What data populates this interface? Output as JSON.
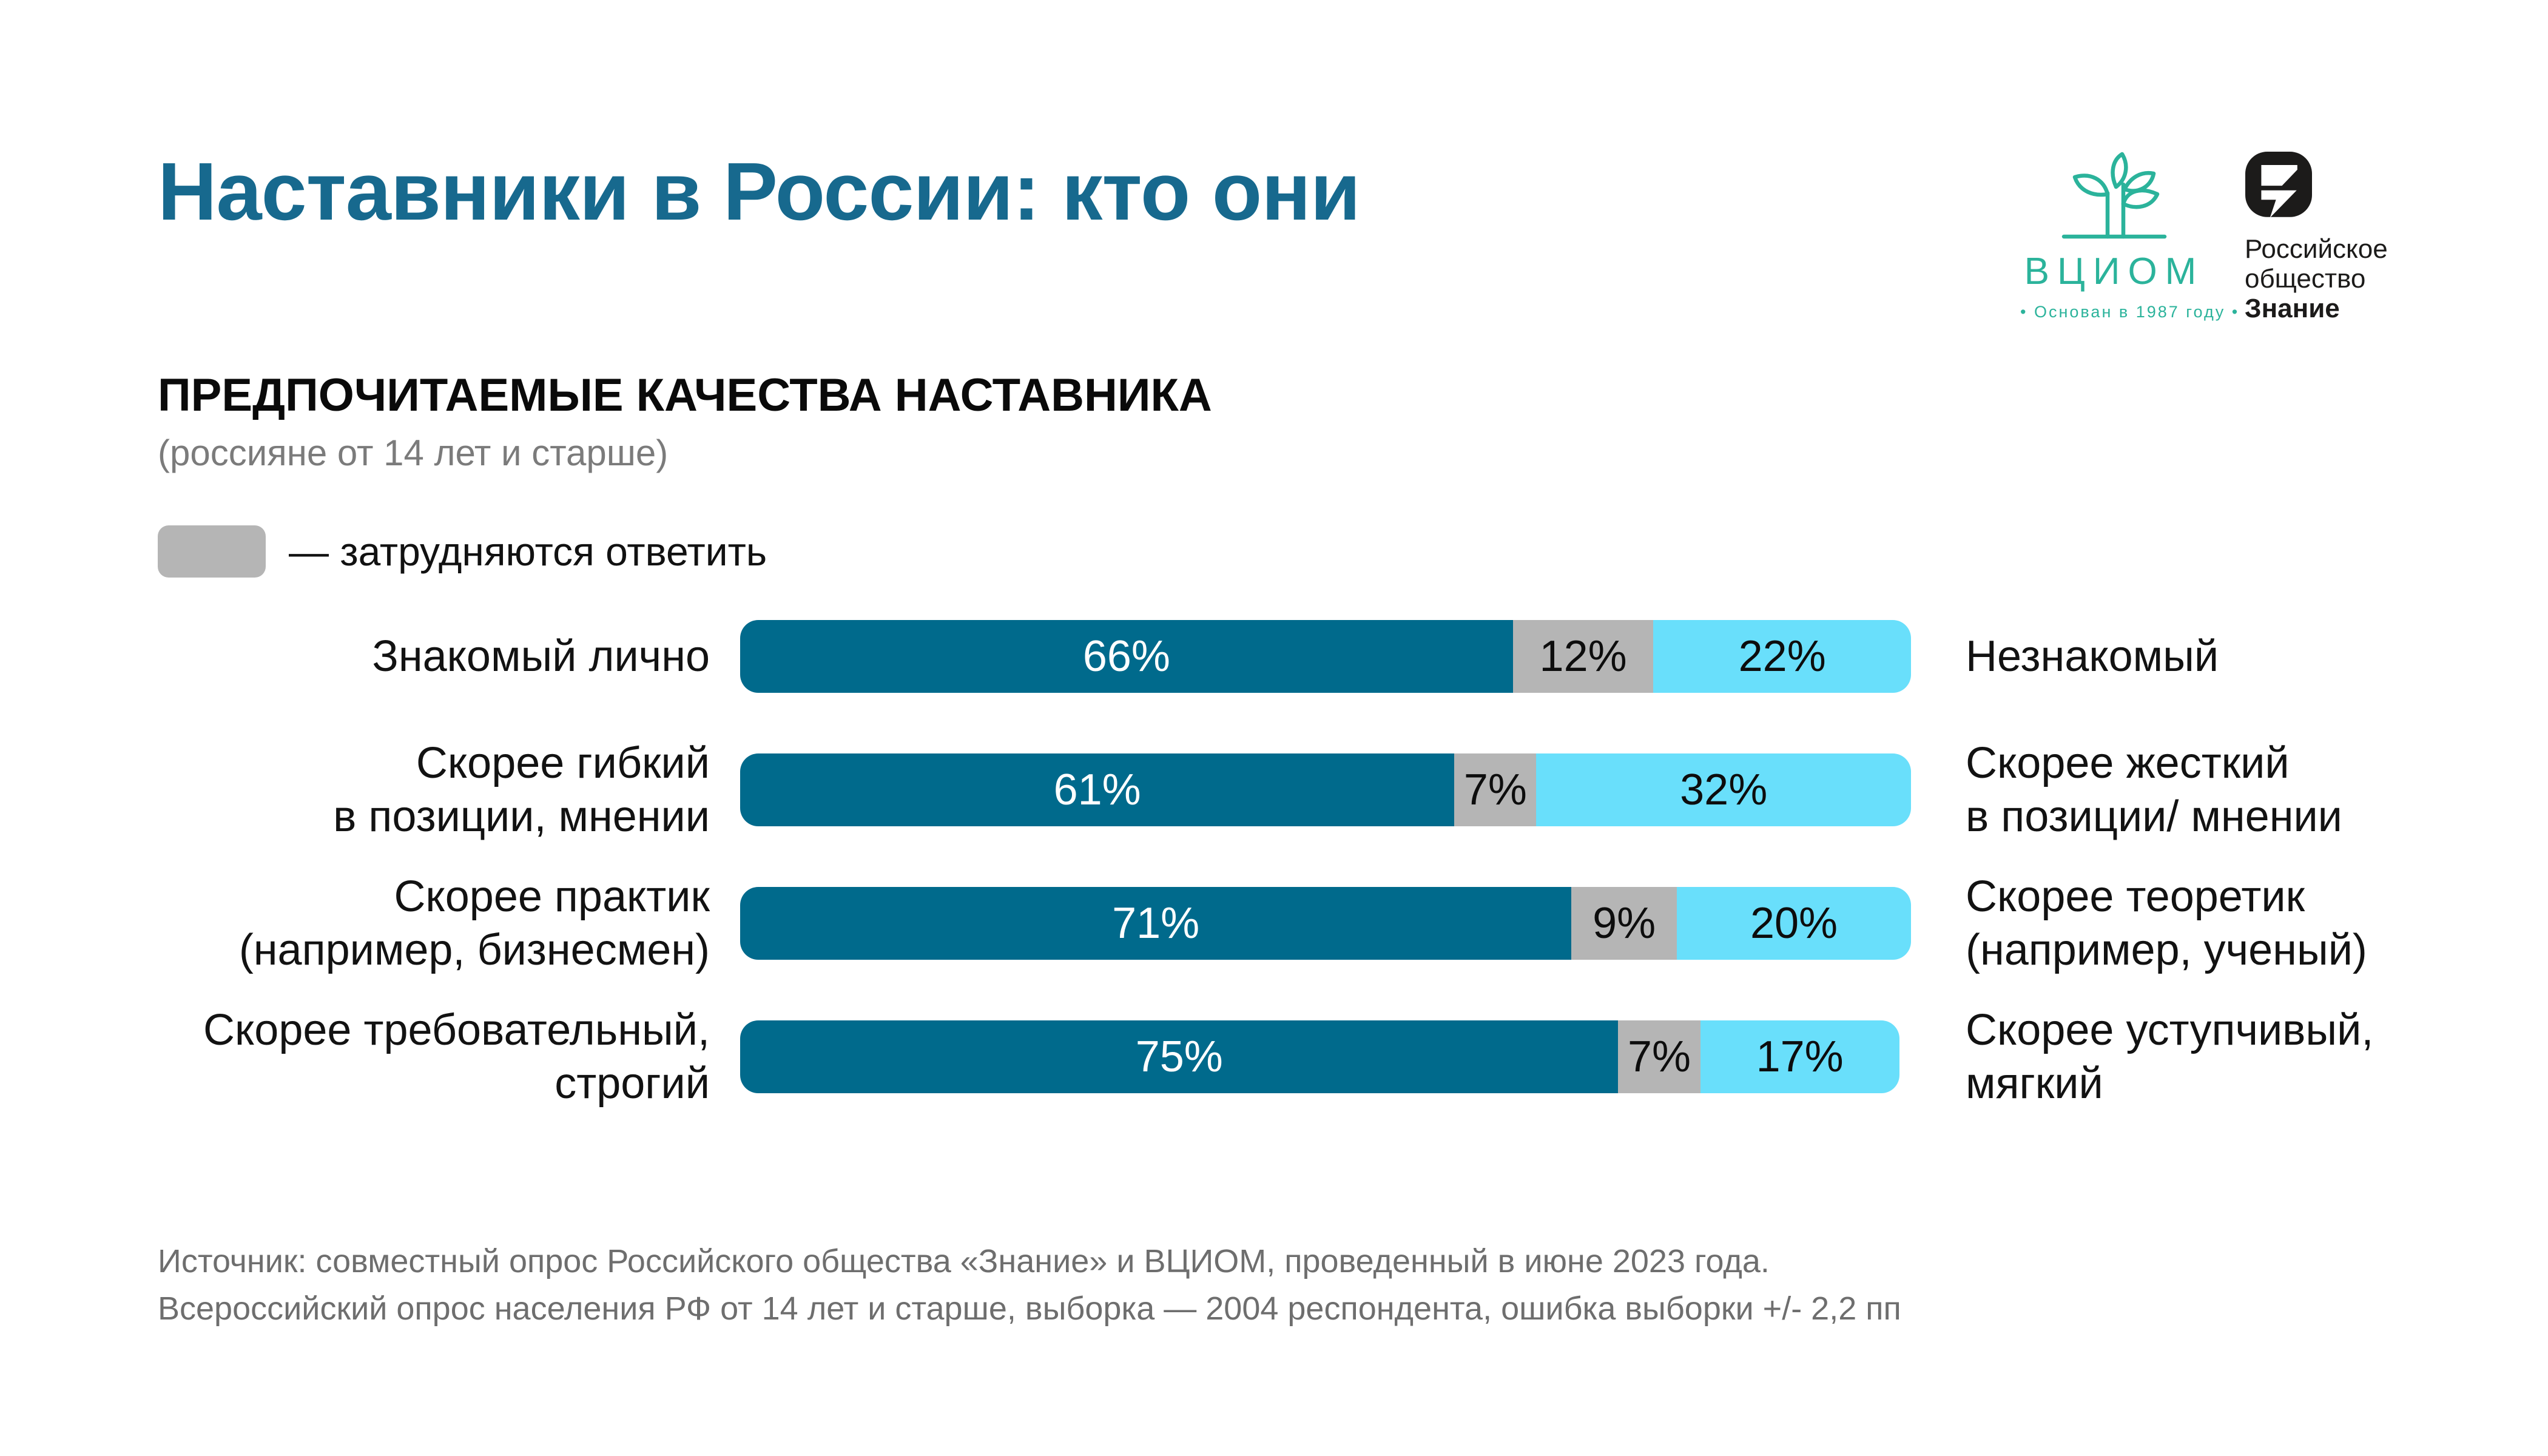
{
  "title": "Наставники в России: кто они",
  "logos": {
    "vciom": {
      "name": "ВЦИОМ",
      "tagline": "•  Основан в 1987 году  •"
    },
    "znanie": {
      "line1": "Российское",
      "line2": "общество",
      "line3": "Знание"
    }
  },
  "section": {
    "heading": "ПРЕДПОЧИТАЕМЫЕ КАЧЕСТВА НАСТАВНИКА",
    "subtitle": "(россияне от 14 лет и старше)"
  },
  "legend": {
    "label": "— затрудняются ответить"
  },
  "colors": {
    "title": "#17698E",
    "primary": "#006A8C",
    "neutral": "#B5B5B5",
    "secondary": "#69DFFB",
    "vciom_green": "#2BB39B"
  },
  "chart_data": {
    "type": "bar",
    "orientation": "horizontal",
    "stacked": true,
    "unit": "%",
    "xlim": [
      0,
      100
    ],
    "series_names": [
      "левый вариант",
      "затрудняются ответить",
      "правый вариант"
    ],
    "legend_position": "top-left",
    "grid": false,
    "rows": [
      {
        "left_label": [
          "Знакомый лично"
        ],
        "right_label": [
          "Незнакомый"
        ],
        "values": [
          66,
          12,
          22
        ],
        "display": [
          "66%",
          "12%",
          "22%"
        ]
      },
      {
        "left_label": [
          "Скорее гибкий",
          "в позиции, мнении"
        ],
        "right_label": [
          "Скорее жесткий",
          "в позиции/ мнении"
        ],
        "values": [
          61,
          7,
          32
        ],
        "display": [
          "61%",
          "7%",
          "32%"
        ]
      },
      {
        "left_label": [
          "Скорее практик",
          "(например, бизнесмен)"
        ],
        "right_label": [
          "Скорее теоретик",
          "(например, ученый)"
        ],
        "values": [
          71,
          9,
          20
        ],
        "display": [
          "71%",
          "9%",
          "20%"
        ]
      },
      {
        "left_label": [
          "Скорее требовательный,",
          "строгий"
        ],
        "right_label": [
          "Скорее уступчивый,",
          "мягкий"
        ],
        "values": [
          75,
          7,
          17
        ],
        "display": [
          "75%",
          "7%",
          "17%"
        ]
      }
    ]
  },
  "source": {
    "line1": "Источник: совместный опрос Российского общества «Знание» и ВЦИОМ, проведенный в июне 2023 года.",
    "line2": "Всероссийский опрос населения РФ от 14 лет и старше, выборка — 2004 респондента, ошибка выборки +/- 2,2 пп"
  }
}
